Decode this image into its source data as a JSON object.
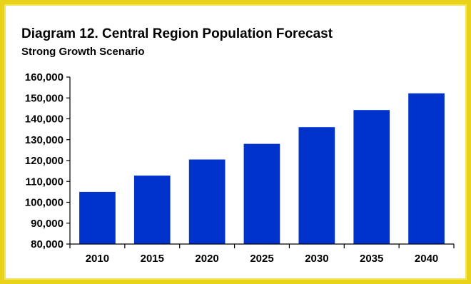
{
  "colors": {
    "frame": "#e9d21a",
    "bar": "#0033cc",
    "axis": "#000000"
  },
  "chart_data": {
    "type": "bar",
    "title": "Diagram 12. Central Region Population Forecast",
    "subtitle": "Strong Growth Scenario",
    "xlabel": "",
    "ylabel": "",
    "categories": [
      "2010",
      "2015",
      "2020",
      "2025",
      "2030",
      "2035",
      "2040"
    ],
    "values": [
      105000,
      112800,
      120500,
      128000,
      136000,
      144200,
      152200
    ],
    "ylim": [
      80000,
      160000
    ],
    "yticks": [
      80000,
      90000,
      100000,
      110000,
      120000,
      130000,
      140000,
      150000,
      160000
    ],
    "ytick_labels": [
      "80,000",
      "90,000",
      "100,000",
      "110,000",
      "120,000",
      "130,000",
      "140,000",
      "150,000",
      "160,000"
    ],
    "grid": false,
    "legend": "none"
  }
}
